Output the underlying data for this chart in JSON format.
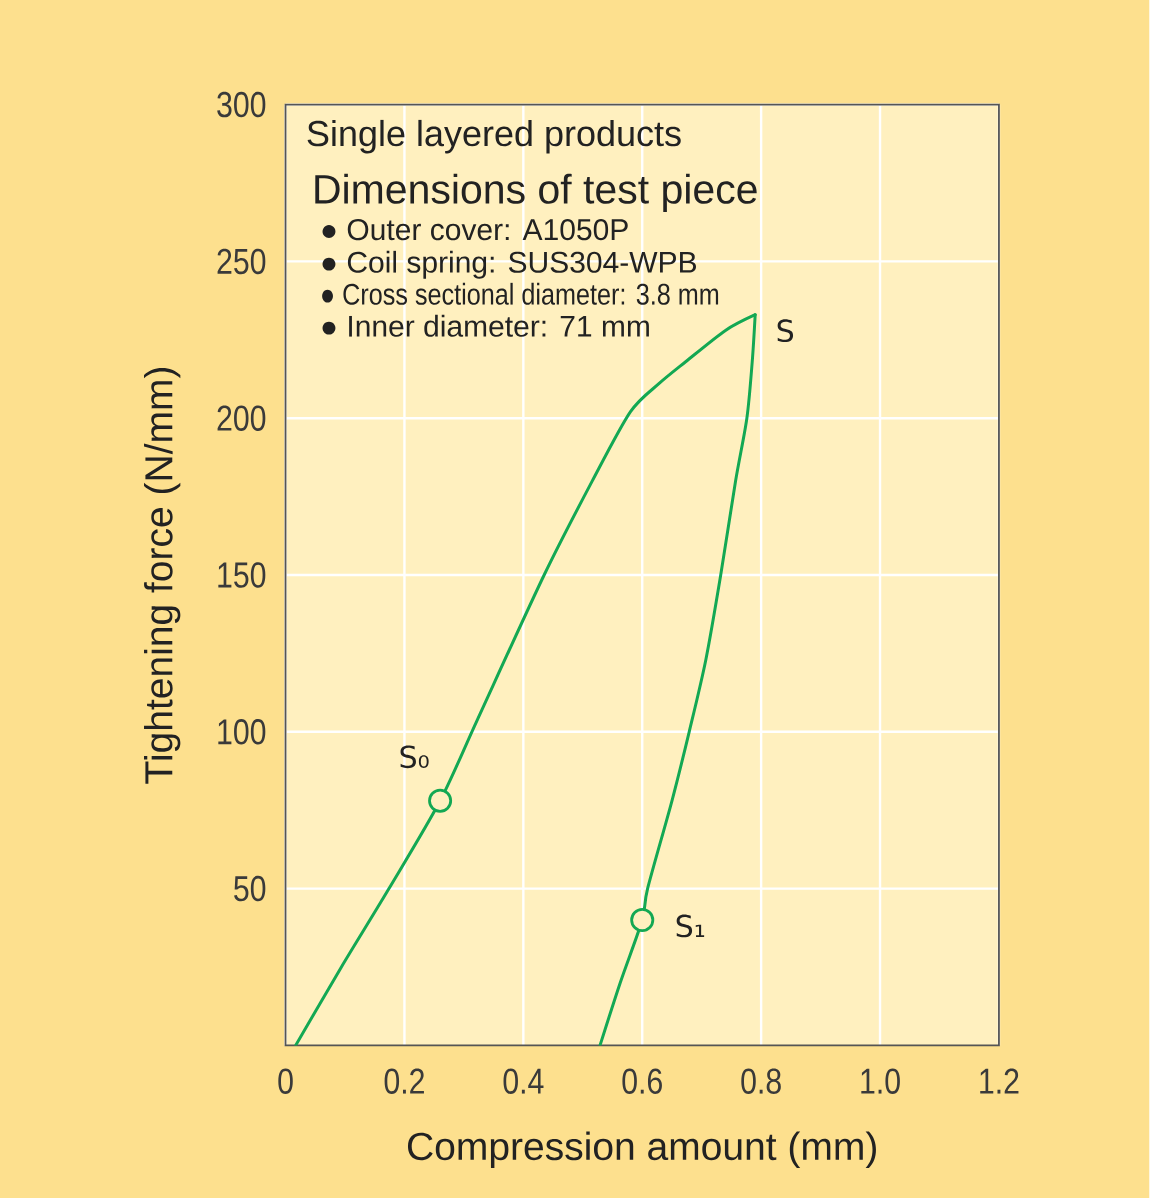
{
  "chart_data": {
    "type": "line",
    "title": "Single layered products",
    "subtitle": "Dimensions of test piece",
    "xlabel": "Compression amount (mm)",
    "ylabel": "Tightening force (N/mm)",
    "annotations": [
      "● Outer cover: A1050P",
      "● Coil spring: SUS304-WPB",
      "● Cross sectional diameter: 3.8 mm",
      "● Inner diameter: 71 mm",
      {
        "text": "S",
        "x": 0.79,
        "y": 233
      },
      {
        "text": "S₀",
        "x": 0.26,
        "y": 78
      },
      {
        "text": "S₁",
        "x": 0.6,
        "y": 40
      }
    ],
    "series": [
      {
        "color": "#13a853",
        "x": [
          0.017,
          0.094,
          0.174,
          0.26,
          0.323,
          0.435,
          0.516,
          0.58,
          0.628,
          0.673,
          0.74,
          0.79
        ],
        "values": [
          0,
          25,
          50,
          78,
          104,
          150,
          180,
          202,
          211,
          218,
          228,
          233
        ]
      },
      {
        "color": "#13a853",
        "x": [
          0.79,
          0.785,
          0.776,
          0.757,
          0.732,
          0.707,
          0.679,
          0.65,
          0.609,
          0.6,
          0.563,
          0.529
        ],
        "values": [
          233,
          218,
          200,
          180,
          150,
          123,
          100,
          78,
          50,
          40,
          20,
          0
        ]
      },
      {
        "type": "scatter",
        "color": "#13a853",
        "marker": "circle",
        "x": [
          0.26,
          0.6
        ],
        "values": [
          78,
          40
        ]
      }
    ],
    "xlim": [
      0,
      1.2
    ],
    "ylim": [
      0,
      300
    ],
    "xticks": [
      0,
      0.2,
      0.4,
      0.6,
      0.8,
      {
        "value": 1,
        "label": "1.0"
      },
      1.2
    ],
    "yticks": [
      50,
      100,
      150,
      200,
      250,
      300
    ],
    "grid": true
  }
}
